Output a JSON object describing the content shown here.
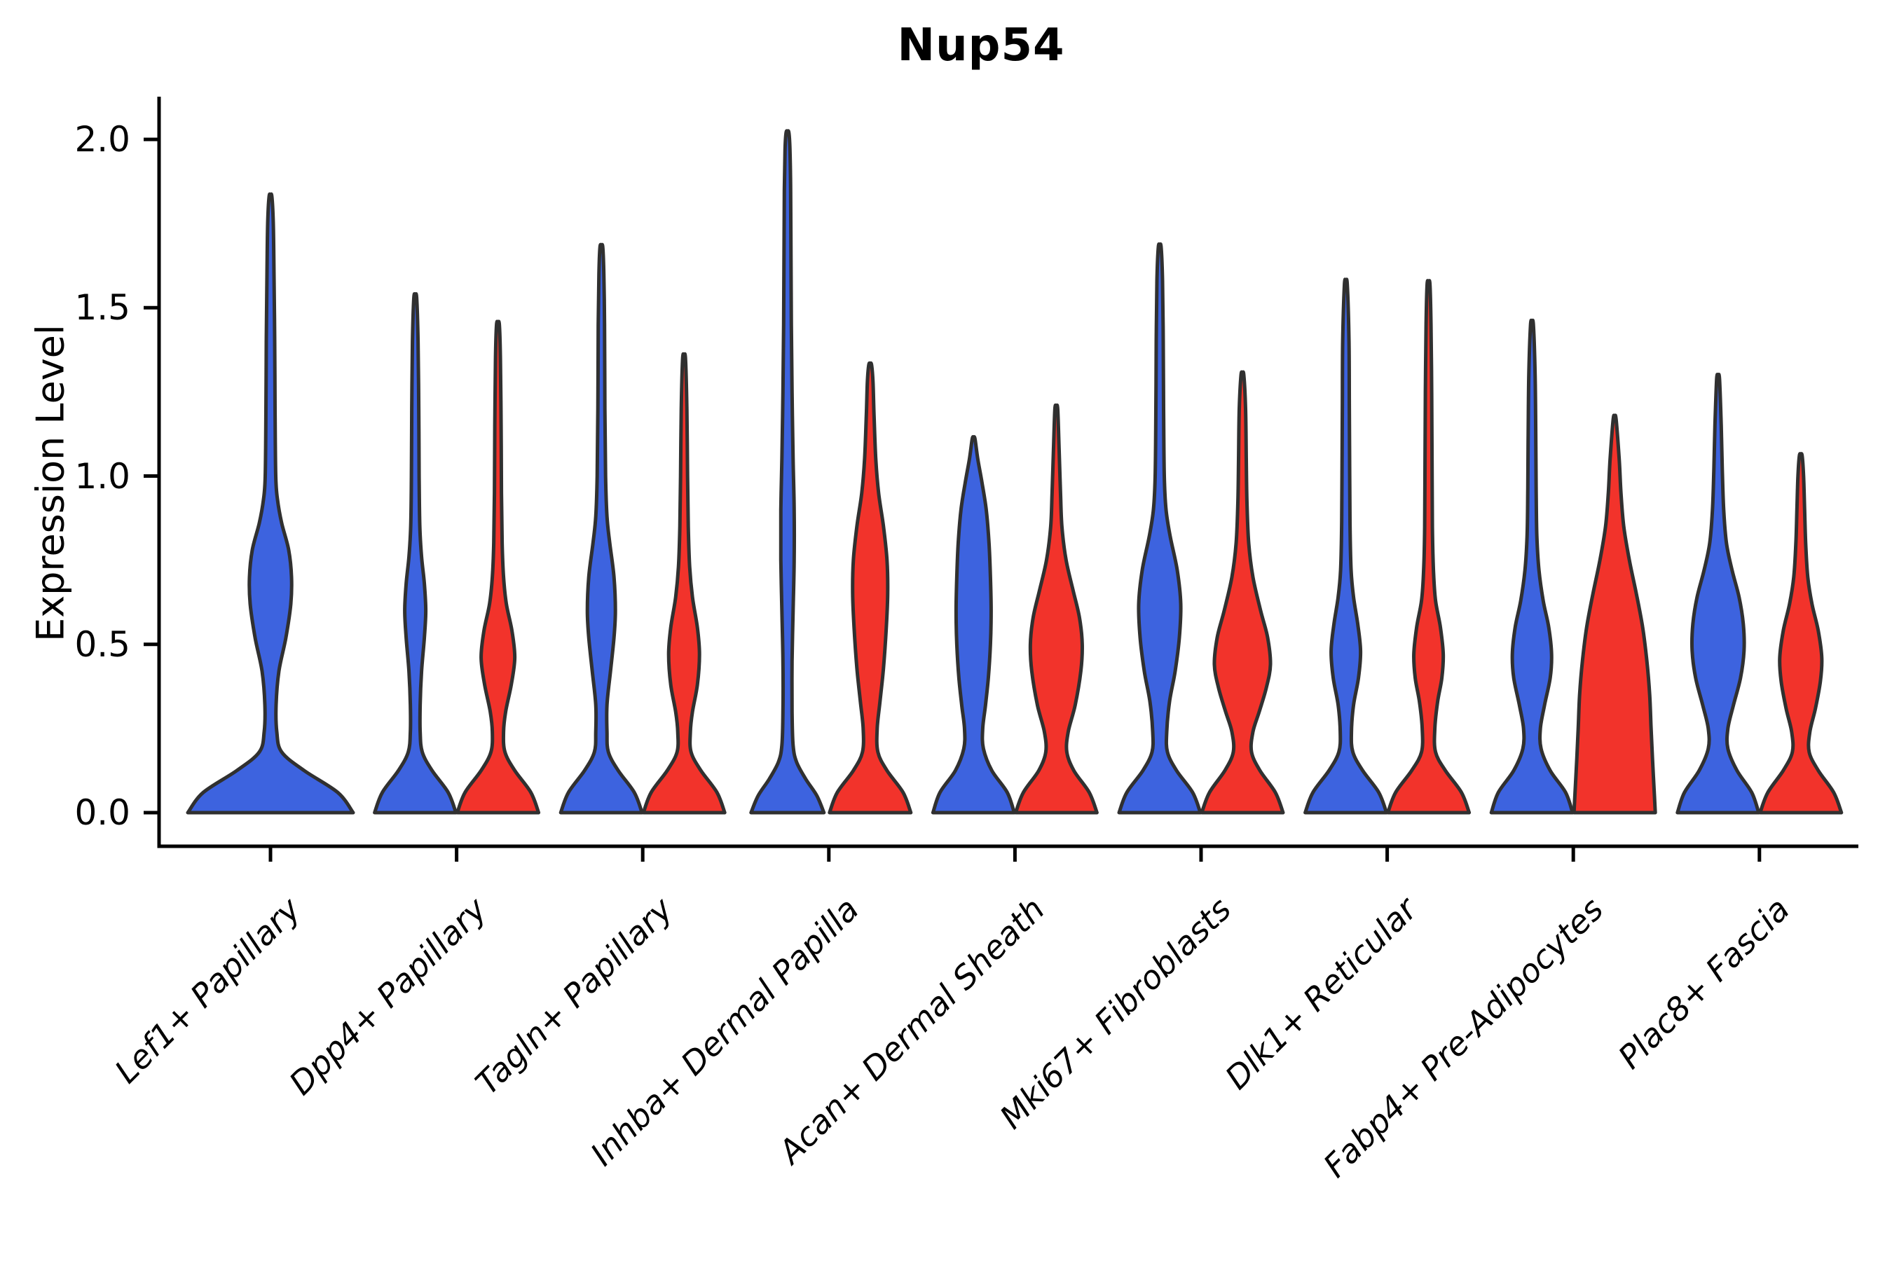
{
  "title": "Nup54",
  "axes": {
    "ylabel": "Expression Level",
    "xlabel": ""
  },
  "chart_data": {
    "type": "violin",
    "title": "Nup54",
    "ylabel": "Expression Level",
    "xlabel": "",
    "ylim": [
      0.0,
      2.1
    ],
    "grid": false,
    "legend": "none",
    "layout_hints": {
      "x_tick_rotation_deg": 45,
      "x_label_style": "italic",
      "split_pairs": "each category has a blue (left) and red (right) violin except the first which has a single full-width blue violin"
    },
    "ytick_labels": [
      "0.0",
      "0.5",
      "1.0",
      "1.5",
      "2.0"
    ],
    "ytick_values": [
      0.0,
      0.5,
      1.0,
      1.5,
      2.0
    ],
    "categories": [
      "Lef1+ Papillary",
      "Dpp4+ Papillary",
      "Tagln+ Papillary",
      "Inhba+ Dermal Papilla",
      "Acan+ Dermal Sheath",
      "Mki67+ Fibroblasts",
      "Dlk1+ Reticular",
      "Fabp4+ Pre-Adipocytes",
      "Plac8+ Fascia"
    ],
    "colors": {
      "blue": "#3D63DF",
      "red": "#F2332B",
      "outline": "#303030",
      "axis": "#000000",
      "text": "#000000"
    },
    "violins": [
      {
        "category_index": 0,
        "color": "blue",
        "position": "full",
        "max": 1.83,
        "profile": [
          [
            0,
            118
          ],
          [
            0.06,
            96
          ],
          [
            0.125,
            48
          ],
          [
            0.18,
            16
          ],
          [
            0.24,
            9
          ],
          [
            0.32,
            8
          ],
          [
            0.42,
            12
          ],
          [
            0.52,
            22
          ],
          [
            0.62,
            29
          ],
          [
            0.7,
            30
          ],
          [
            0.78,
            26
          ],
          [
            0.86,
            16
          ],
          [
            0.93,
            10
          ],
          [
            1.0,
            7.5
          ],
          [
            1.2,
            6.5
          ],
          [
            1.4,
            6
          ],
          [
            1.6,
            5
          ],
          [
            1.75,
            4
          ],
          [
            1.83,
            2
          ]
        ]
      },
      {
        "category_index": 1,
        "color": "blue",
        "position": "left",
        "max": 1.53,
        "profile": [
          [
            0,
            58
          ],
          [
            0.06,
            47
          ],
          [
            0.125,
            24
          ],
          [
            0.18,
            10
          ],
          [
            0.24,
            7
          ],
          [
            0.32,
            7
          ],
          [
            0.42,
            9
          ],
          [
            0.52,
            13
          ],
          [
            0.6,
            15
          ],
          [
            0.68,
            13
          ],
          [
            0.76,
            9
          ],
          [
            0.85,
            6.5
          ],
          [
            1.0,
            5.5
          ],
          [
            1.2,
            5
          ],
          [
            1.4,
            4
          ],
          [
            1.53,
            2
          ]
        ]
      },
      {
        "category_index": 1,
        "color": "red",
        "position": "right",
        "max": 1.45,
        "profile": [
          [
            0,
            58
          ],
          [
            0.06,
            47
          ],
          [
            0.125,
            24
          ],
          [
            0.18,
            10
          ],
          [
            0.24,
            8
          ],
          [
            0.3,
            11
          ],
          [
            0.38,
            19
          ],
          [
            0.46,
            24
          ],
          [
            0.54,
            20
          ],
          [
            0.62,
            12
          ],
          [
            0.7,
            8
          ],
          [
            0.8,
            6
          ],
          [
            0.95,
            5
          ],
          [
            1.15,
            4.5
          ],
          [
            1.35,
            3.5
          ],
          [
            1.45,
            2
          ]
        ]
      },
      {
        "category_index": 2,
        "color": "blue",
        "position": "left",
        "max": 1.68,
        "profile": [
          [
            0,
            58
          ],
          [
            0.06,
            47
          ],
          [
            0.125,
            24
          ],
          [
            0.18,
            10
          ],
          [
            0.24,
            8
          ],
          [
            0.32,
            8
          ],
          [
            0.42,
            13
          ],
          [
            0.52,
            18
          ],
          [
            0.6,
            20
          ],
          [
            0.7,
            18
          ],
          [
            0.8,
            12
          ],
          [
            0.88,
            8
          ],
          [
            1.0,
            6
          ],
          [
            1.2,
            5
          ],
          [
            1.45,
            4.5
          ],
          [
            1.6,
            3.5
          ],
          [
            1.68,
            2
          ]
        ]
      },
      {
        "category_index": 2,
        "color": "red",
        "position": "right",
        "max": 1.35,
        "profile": [
          [
            0,
            58
          ],
          [
            0.06,
            47
          ],
          [
            0.125,
            24
          ],
          [
            0.18,
            10
          ],
          [
            0.24,
            9
          ],
          [
            0.3,
            12
          ],
          [
            0.38,
            19
          ],
          [
            0.47,
            22
          ],
          [
            0.55,
            19
          ],
          [
            0.64,
            12
          ],
          [
            0.73,
            8
          ],
          [
            0.85,
            6
          ],
          [
            1.0,
            5
          ],
          [
            1.2,
            4
          ],
          [
            1.35,
            2
          ]
        ]
      },
      {
        "category_index": 3,
        "color": "blue",
        "position": "left",
        "max": 2.02,
        "profile": [
          [
            0,
            52
          ],
          [
            0.05,
            42
          ],
          [
            0.1,
            26
          ],
          [
            0.15,
            13
          ],
          [
            0.2,
            8
          ],
          [
            0.3,
            6.5
          ],
          [
            0.45,
            6.5
          ],
          [
            0.6,
            8
          ],
          [
            0.75,
            9.5
          ],
          [
            0.9,
            9.5
          ],
          [
            1.05,
            8
          ],
          [
            1.25,
            6.5
          ],
          [
            1.45,
            5.5
          ],
          [
            1.65,
            5
          ],
          [
            1.85,
            4.5
          ],
          [
            1.97,
            3.5
          ],
          [
            2.02,
            2
          ]
        ]
      },
      {
        "category_index": 3,
        "color": "red",
        "position": "right",
        "max": 1.33,
        "profile": [
          [
            0,
            58
          ],
          [
            0.06,
            47
          ],
          [
            0.125,
            24
          ],
          [
            0.18,
            11
          ],
          [
            0.25,
            10
          ],
          [
            0.33,
            14
          ],
          [
            0.43,
            19
          ],
          [
            0.55,
            23
          ],
          [
            0.65,
            25
          ],
          [
            0.75,
            24
          ],
          [
            0.85,
            19
          ],
          [
            0.95,
            12
          ],
          [
            1.05,
            8
          ],
          [
            1.18,
            5.5
          ],
          [
            1.28,
            4
          ],
          [
            1.33,
            2
          ]
        ]
      },
      {
        "category_index": 4,
        "color": "blue",
        "position": "left",
        "max": 1.11,
        "profile": [
          [
            0,
            58
          ],
          [
            0.06,
            48
          ],
          [
            0.125,
            26
          ],
          [
            0.19,
            14
          ],
          [
            0.25,
            13
          ],
          [
            0.32,
            17
          ],
          [
            0.4,
            21
          ],
          [
            0.5,
            24
          ],
          [
            0.6,
            25
          ],
          [
            0.7,
            24
          ],
          [
            0.8,
            22
          ],
          [
            0.9,
            18
          ],
          [
            0.98,
            12
          ],
          [
            1.05,
            6
          ],
          [
            1.11,
            2
          ]
        ]
      },
      {
        "category_index": 4,
        "color": "red",
        "position": "right",
        "max": 1.2,
        "profile": [
          [
            0,
            58
          ],
          [
            0.06,
            47
          ],
          [
            0.125,
            25
          ],
          [
            0.18,
            15
          ],
          [
            0.24,
            17
          ],
          [
            0.32,
            27
          ],
          [
            0.42,
            35
          ],
          [
            0.5,
            37
          ],
          [
            0.58,
            33
          ],
          [
            0.66,
            24
          ],
          [
            0.75,
            14
          ],
          [
            0.85,
            8
          ],
          [
            0.95,
            6
          ],
          [
            1.08,
            4
          ],
          [
            1.2,
            2
          ]
        ]
      },
      {
        "category_index": 5,
        "color": "blue",
        "position": "left",
        "max": 1.68,
        "profile": [
          [
            0,
            58
          ],
          [
            0.06,
            47
          ],
          [
            0.125,
            24
          ],
          [
            0.18,
            11
          ],
          [
            0.24,
            10
          ],
          [
            0.33,
            14
          ],
          [
            0.42,
            22
          ],
          [
            0.52,
            28
          ],
          [
            0.62,
            30
          ],
          [
            0.72,
            25
          ],
          [
            0.82,
            15
          ],
          [
            0.9,
            9
          ],
          [
            1.0,
            6.5
          ],
          [
            1.2,
            5.5
          ],
          [
            1.4,
            5
          ],
          [
            1.58,
            4
          ],
          [
            1.68,
            2
          ]
        ]
      },
      {
        "category_index": 5,
        "color": "red",
        "position": "right",
        "max": 1.3,
        "profile": [
          [
            0,
            58
          ],
          [
            0.06,
            47
          ],
          [
            0.125,
            25
          ],
          [
            0.18,
            13
          ],
          [
            0.24,
            15
          ],
          [
            0.3,
            24
          ],
          [
            0.37,
            34
          ],
          [
            0.44,
            40
          ],
          [
            0.52,
            36
          ],
          [
            0.6,
            26
          ],
          [
            0.7,
            15
          ],
          [
            0.8,
            9
          ],
          [
            0.92,
            6.5
          ],
          [
            1.05,
            5.5
          ],
          [
            1.2,
            4.5
          ],
          [
            1.3,
            2
          ]
        ]
      },
      {
        "category_index": 6,
        "color": "blue",
        "position": "left",
        "max": 1.57,
        "profile": [
          [
            0,
            58
          ],
          [
            0.06,
            47
          ],
          [
            0.125,
            24
          ],
          [
            0.18,
            10
          ],
          [
            0.24,
            8
          ],
          [
            0.32,
            11
          ],
          [
            0.4,
            18
          ],
          [
            0.48,
            21
          ],
          [
            0.56,
            17
          ],
          [
            0.64,
            11
          ],
          [
            0.72,
            7.5
          ],
          [
            0.85,
            6
          ],
          [
            1.0,
            5.5
          ],
          [
            1.2,
            5
          ],
          [
            1.4,
            4.5
          ],
          [
            1.57,
            2
          ]
        ]
      },
      {
        "category_index": 6,
        "color": "red",
        "position": "right",
        "max": 1.57,
        "profile": [
          [
            0,
            58
          ],
          [
            0.06,
            47
          ],
          [
            0.125,
            24
          ],
          [
            0.18,
            10
          ],
          [
            0.25,
            9
          ],
          [
            0.33,
            13
          ],
          [
            0.4,
            19
          ],
          [
            0.47,
            21
          ],
          [
            0.55,
            17
          ],
          [
            0.63,
            10
          ],
          [
            0.72,
            7
          ],
          [
            0.85,
            5.5
          ],
          [
            1.05,
            5
          ],
          [
            1.25,
            4.5
          ],
          [
            1.45,
            3.5
          ],
          [
            1.57,
            2
          ]
        ]
      },
      {
        "category_index": 7,
        "color": "blue",
        "position": "left",
        "max": 1.45,
        "profile": [
          [
            0,
            58
          ],
          [
            0.06,
            48
          ],
          [
            0.125,
            26
          ],
          [
            0.19,
            13
          ],
          [
            0.25,
            12
          ],
          [
            0.32,
            18
          ],
          [
            0.4,
            26
          ],
          [
            0.47,
            28
          ],
          [
            0.55,
            24
          ],
          [
            0.63,
            16
          ],
          [
            0.72,
            10
          ],
          [
            0.82,
            7
          ],
          [
            0.95,
            6
          ],
          [
            1.1,
            5.5
          ],
          [
            1.3,
            4.5
          ],
          [
            1.45,
            2
          ]
        ]
      },
      {
        "category_index": 7,
        "color": "red",
        "position": "right",
        "max": 1.17,
        "profile": [
          [
            0,
            58
          ],
          [
            0.08,
            56
          ],
          [
            0.16,
            54
          ],
          [
            0.25,
            52
          ],
          [
            0.35,
            50
          ],
          [
            0.45,
            46
          ],
          [
            0.55,
            40
          ],
          [
            0.65,
            31
          ],
          [
            0.75,
            21
          ],
          [
            0.85,
            13
          ],
          [
            0.95,
            9
          ],
          [
            1.05,
            6.5
          ],
          [
            1.17,
            2
          ]
        ]
      },
      {
        "category_index": 8,
        "color": "blue",
        "position": "left",
        "max": 1.29,
        "profile": [
          [
            0,
            58
          ],
          [
            0.06,
            48
          ],
          [
            0.125,
            27
          ],
          [
            0.19,
            14
          ],
          [
            0.25,
            14
          ],
          [
            0.32,
            22
          ],
          [
            0.4,
            32
          ],
          [
            0.48,
            37
          ],
          [
            0.56,
            36
          ],
          [
            0.64,
            30
          ],
          [
            0.72,
            20
          ],
          [
            0.8,
            12
          ],
          [
            0.9,
            8
          ],
          [
            1.02,
            6
          ],
          [
            1.15,
            4.5
          ],
          [
            1.29,
            2
          ]
        ]
      },
      {
        "category_index": 8,
        "color": "red",
        "position": "right",
        "max": 1.06,
        "profile": [
          [
            0,
            58
          ],
          [
            0.06,
            47
          ],
          [
            0.125,
            25
          ],
          [
            0.18,
            12
          ],
          [
            0.24,
            13
          ],
          [
            0.31,
            21
          ],
          [
            0.39,
            28
          ],
          [
            0.46,
            30
          ],
          [
            0.54,
            25
          ],
          [
            0.62,
            16
          ],
          [
            0.7,
            10
          ],
          [
            0.8,
            7
          ],
          [
            0.9,
            5.5
          ],
          [
            1.0,
            4
          ],
          [
            1.06,
            2
          ]
        ]
      }
    ]
  }
}
